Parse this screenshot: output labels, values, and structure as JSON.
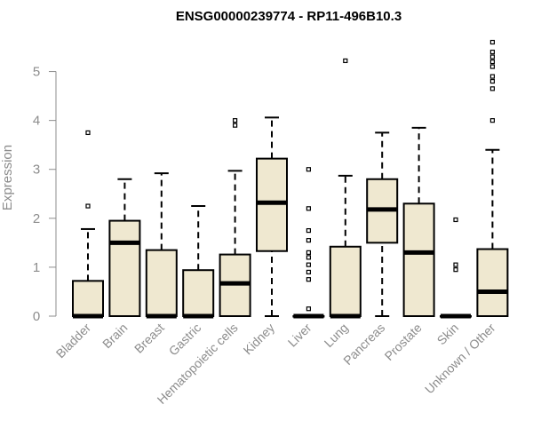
{
  "chart_data": {
    "type": "boxplot",
    "title": "ENSG00000239774 - RP11-496B10.3",
    "xlabel": "",
    "ylabel": "Expression",
    "ylim": [
      0,
      5.7
    ],
    "yticks": [
      0,
      1,
      2,
      3,
      4,
      5
    ],
    "box_color": "#efe8d0",
    "grid": false,
    "categories": [
      "Bladder",
      "Brain",
      "Breast",
      "Gastric",
      "Hematopoietic cells",
      "Kidney",
      "Liver",
      "Lung",
      "Pancreas",
      "Prostate",
      "Skin",
      "Unknown / Other"
    ],
    "boxes": [
      {
        "min": 0,
        "q1": 0,
        "median": 0,
        "q3": 0.72,
        "max": 1.78,
        "outliers": [
          2.25,
          3.75
        ]
      },
      {
        "min": 0,
        "q1": 0,
        "median": 1.5,
        "q3": 1.95,
        "max": 2.8,
        "outliers": []
      },
      {
        "min": 0,
        "q1": 0,
        "median": 0,
        "q3": 1.35,
        "max": 2.92,
        "outliers": []
      },
      {
        "min": 0,
        "q1": 0,
        "median": 0,
        "q3": 0.94,
        "max": 2.25,
        "outliers": []
      },
      {
        "min": 0,
        "q1": 0,
        "median": 0.67,
        "q3": 1.26,
        "max": 2.97,
        "outliers": [
          3.9,
          4.0
        ]
      },
      {
        "min": 0,
        "q1": 1.33,
        "median": 2.32,
        "q3": 3.22,
        "max": 4.06,
        "outliers": []
      },
      {
        "min": 0,
        "q1": 0,
        "median": 0,
        "q3": 0,
        "max": 0,
        "outliers": [
          0.15,
          0.75,
          0.9,
          1.05,
          1.2,
          1.3,
          1.55,
          1.75,
          2.2,
          3.0
        ]
      },
      {
        "min": 0,
        "q1": 0,
        "median": 0,
        "q3": 1.42,
        "max": 2.87,
        "outliers": [
          5.22
        ]
      },
      {
        "min": 0,
        "q1": 1.5,
        "median": 2.18,
        "q3": 2.8,
        "max": 3.75,
        "outliers": []
      },
      {
        "min": 0,
        "q1": 0,
        "median": 1.3,
        "q3": 2.3,
        "max": 3.85,
        "outliers": []
      },
      {
        "min": 0,
        "q1": 0,
        "median": 0,
        "q3": 0,
        "max": 0,
        "outliers": [
          0.95,
          1.05,
          1.97
        ]
      },
      {
        "min": 0,
        "q1": 0,
        "median": 0.5,
        "q3": 1.37,
        "max": 3.4,
        "outliers": [
          4.0,
          4.65,
          4.8,
          4.9,
          5.1,
          5.2,
          5.3,
          5.4,
          5.6
        ]
      }
    ]
  }
}
